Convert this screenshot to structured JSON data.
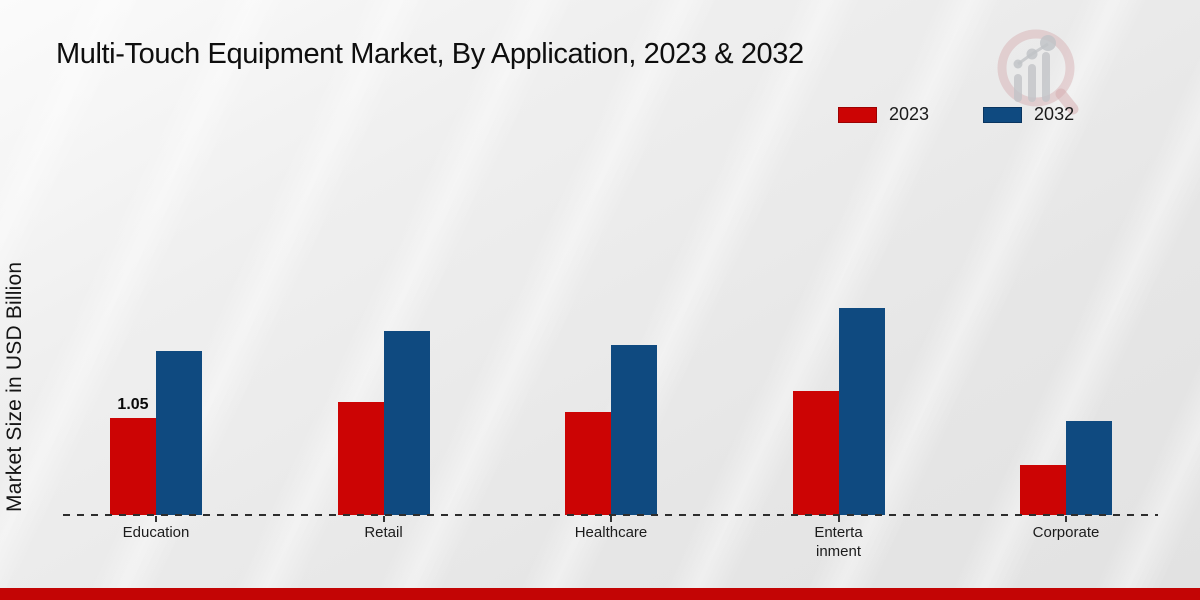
{
  "title": "Multi-Touch Equipment Market, By Application, 2023 & 2032",
  "ylabel": "Market Size in USD Billion",
  "legend": [
    {
      "label": "2023",
      "color": "#cc0404",
      "border": "#9c0202"
    },
    {
      "label": "2032",
      "color": "#0f4a80",
      "border": "#0a3560"
    }
  ],
  "colors": {
    "series_2023": "#cc0404",
    "series_2032": "#0f4a80",
    "footer_strip": "#c30505",
    "axis": "#2d2d2d",
    "background": "#ebebeb"
  },
  "icons": {
    "brand_logo": "magnifier-bar-chart-watermark-icon"
  },
  "chart_data": {
    "type": "bar",
    "title": "Multi-Touch Equipment Market, By Application, 2023 & 2032",
    "xlabel": "",
    "ylabel": "Market Size in USD Billion",
    "categories": [
      "Education",
      "Retail",
      "Healthcare",
      "Entertainment",
      "Corporate"
    ],
    "category_display_lines": [
      [
        "Education"
      ],
      [
        "Retail"
      ],
      [
        "Healthcare"
      ],
      [
        "Enterta",
        "inment"
      ],
      [
        "Corporate"
      ]
    ],
    "series": [
      {
        "name": "2023",
        "color": "#cc0404",
        "values": [
          1.05,
          1.22,
          1.11,
          1.34,
          0.54
        ],
        "data_labels": [
          "1.05",
          "",
          "",
          "",
          ""
        ]
      },
      {
        "name": "2032",
        "color": "#0f4a80",
        "values": [
          1.78,
          1.99,
          1.84,
          2.24,
          1.02
        ],
        "data_labels": [
          "",
          "",
          "",
          "",
          ""
        ]
      }
    ],
    "ylim": [
      0,
      2.5
    ],
    "y_axis_ticks_visible": false,
    "gridlines": false,
    "baseline_style": "dashed",
    "legend_position": "top-right"
  },
  "footer": {
    "strip": ""
  }
}
